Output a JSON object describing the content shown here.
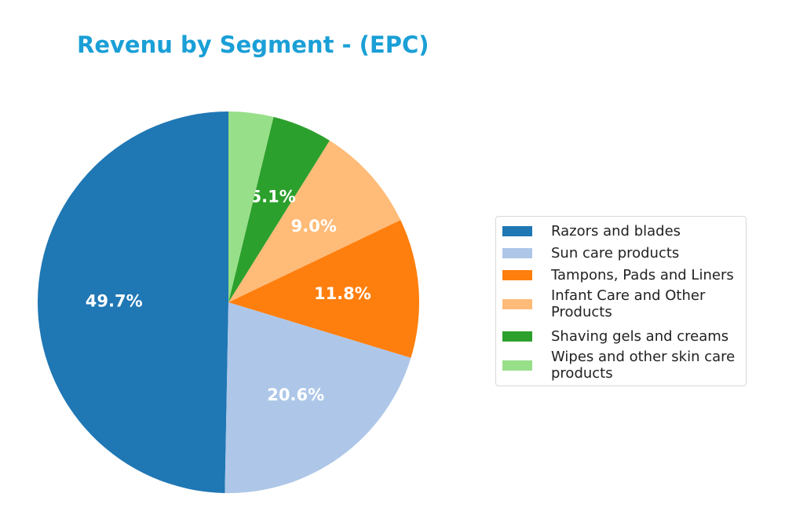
{
  "title": "Revenu by Segment - (EPC)",
  "chart_data": {
    "type": "pie",
    "title": "Revenu by Segment - (EPC)",
    "categories": [
      "Razors and blades",
      "Sun care products",
      "Tampons, Pads and Liners",
      "Infant Care and Other Products",
      "Shaving gels and creams",
      "Wipes and other skin care products"
    ],
    "values": [
      49.7,
      20.6,
      11.8,
      9.0,
      5.1,
      3.8
    ],
    "labels": [
      "49.7%",
      "20.6%",
      "11.8%",
      "9.0%",
      "5.1%",
      ""
    ],
    "colors": [
      "#1f77b4",
      "#aec7e8",
      "#ff7f0e",
      "#ffbb78",
      "#2ca02c",
      "#98df8a"
    ],
    "start_angle": 90,
    "direction": "counterclockwise",
    "legend_position": "right"
  },
  "legend": {
    "items": [
      {
        "label": "Razors and blades",
        "color": "#1f77b4"
      },
      {
        "label": "Sun care products",
        "color": "#aec7e8"
      },
      {
        "label": "Tampons, Pads and Liners",
        "color": "#ff7f0e"
      },
      {
        "label": "Infant Care and Other\nProducts",
        "color": "#ffbb78"
      },
      {
        "label": "Shaving gels and creams",
        "color": "#2ca02c"
      },
      {
        "label": "Wipes and other skin care\nproducts",
        "color": "#98df8a"
      }
    ]
  }
}
